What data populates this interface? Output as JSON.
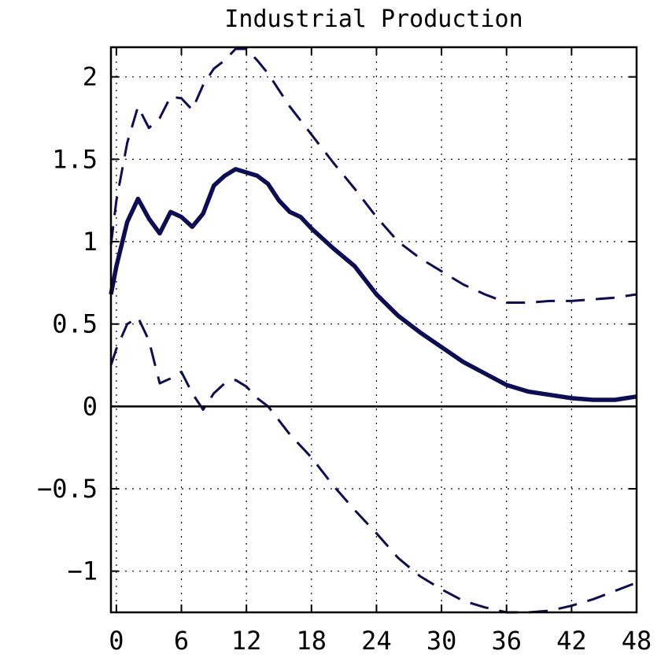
{
  "chart_data": {
    "type": "line",
    "title": "Industrial Production",
    "xlabel": "",
    "ylabel": "",
    "xlim": [
      -0.5,
      48
    ],
    "ylim": [
      -1.25,
      2.18
    ],
    "xticks": [
      0,
      6,
      12,
      18,
      24,
      30,
      36,
      42,
      48
    ],
    "xtick_labels": [
      "0",
      "6",
      "12",
      "18",
      "24",
      "30",
      "36",
      "42",
      "48"
    ],
    "yticks": [
      -1,
      -0.5,
      0,
      0.5,
      1,
      1.5,
      2
    ],
    "ytick_labels": [
      "−1",
      "−0.5",
      "0",
      "0.5",
      "1",
      "1.5",
      "2"
    ],
    "grid": true,
    "zero_line": true,
    "line_color": "#0d0d55",
    "series": [
      {
        "style": "solid",
        "values": [
          [
            -0.5,
            0.68
          ],
          [
            0,
            0.85
          ],
          [
            1,
            1.12
          ],
          [
            2,
            1.26
          ],
          [
            3,
            1.14
          ],
          [
            4,
            1.05
          ],
          [
            5,
            1.18
          ],
          [
            6,
            1.15
          ],
          [
            7,
            1.09
          ],
          [
            8,
            1.17
          ],
          [
            9,
            1.34
          ],
          [
            10,
            1.4
          ],
          [
            11,
            1.44
          ],
          [
            12,
            1.42
          ],
          [
            13,
            1.4
          ],
          [
            14,
            1.35
          ],
          [
            15,
            1.25
          ],
          [
            16,
            1.18
          ],
          [
            17,
            1.15
          ],
          [
            18,
            1.08
          ],
          [
            20,
            0.96
          ],
          [
            22,
            0.85
          ],
          [
            24,
            0.68
          ],
          [
            26,
            0.55
          ],
          [
            28,
            0.45
          ],
          [
            30,
            0.36
          ],
          [
            32,
            0.27
          ],
          [
            34,
            0.2
          ],
          [
            36,
            0.13
          ],
          [
            38,
            0.09
          ],
          [
            40,
            0.07
          ],
          [
            42,
            0.05
          ],
          [
            44,
            0.04
          ],
          [
            46,
            0.04
          ],
          [
            48,
            0.06
          ]
        ]
      },
      {
        "style": "dashed",
        "values": [
          [
            -0.5,
            0.98
          ],
          [
            0,
            1.25
          ],
          [
            1,
            1.6
          ],
          [
            2,
            1.82
          ],
          [
            3,
            1.69
          ],
          [
            4,
            1.75
          ],
          [
            5,
            1.88
          ],
          [
            6,
            1.87
          ],
          [
            7,
            1.8
          ],
          [
            8,
            1.95
          ],
          [
            9,
            2.05
          ],
          [
            10,
            2.1
          ],
          [
            11,
            2.17
          ],
          [
            12,
            2.17
          ],
          [
            13,
            2.1
          ],
          [
            14,
            2.02
          ],
          [
            16,
            1.82
          ],
          [
            18,
            1.65
          ],
          [
            20,
            1.48
          ],
          [
            22,
            1.32
          ],
          [
            24,
            1.15
          ],
          [
            26,
            1.0
          ],
          [
            28,
            0.9
          ],
          [
            30,
            0.82
          ],
          [
            32,
            0.74
          ],
          [
            34,
            0.68
          ],
          [
            36,
            0.63
          ],
          [
            38,
            0.63
          ],
          [
            40,
            0.64
          ],
          [
            42,
            0.64
          ],
          [
            44,
            0.65
          ],
          [
            46,
            0.66
          ],
          [
            48,
            0.68
          ]
        ]
      },
      {
        "style": "dashed",
        "values": [
          [
            -0.5,
            0.25
          ],
          [
            0,
            0.35
          ],
          [
            1,
            0.5
          ],
          [
            2,
            0.54
          ],
          [
            3,
            0.4
          ],
          [
            4,
            0.14
          ],
          [
            5,
            0.17
          ],
          [
            6,
            0.21
          ],
          [
            7,
            0.08
          ],
          [
            8,
            -0.02
          ],
          [
            9,
            0.08
          ],
          [
            10,
            0.14
          ],
          [
            11,
            0.16
          ],
          [
            12,
            0.12
          ],
          [
            13,
            0.05
          ],
          [
            14,
            0.0
          ],
          [
            16,
            -0.17
          ],
          [
            18,
            -0.31
          ],
          [
            20,
            -0.48
          ],
          [
            22,
            -0.63
          ],
          [
            24,
            -0.77
          ],
          [
            26,
            -0.92
          ],
          [
            28,
            -1.03
          ],
          [
            30,
            -1.11
          ],
          [
            32,
            -1.18
          ],
          [
            34,
            -1.22
          ],
          [
            36,
            -1.25
          ],
          [
            38,
            -1.25
          ],
          [
            40,
            -1.24
          ],
          [
            42,
            -1.21
          ],
          [
            44,
            -1.17
          ],
          [
            46,
            -1.12
          ],
          [
            48,
            -1.07
          ]
        ]
      }
    ]
  }
}
